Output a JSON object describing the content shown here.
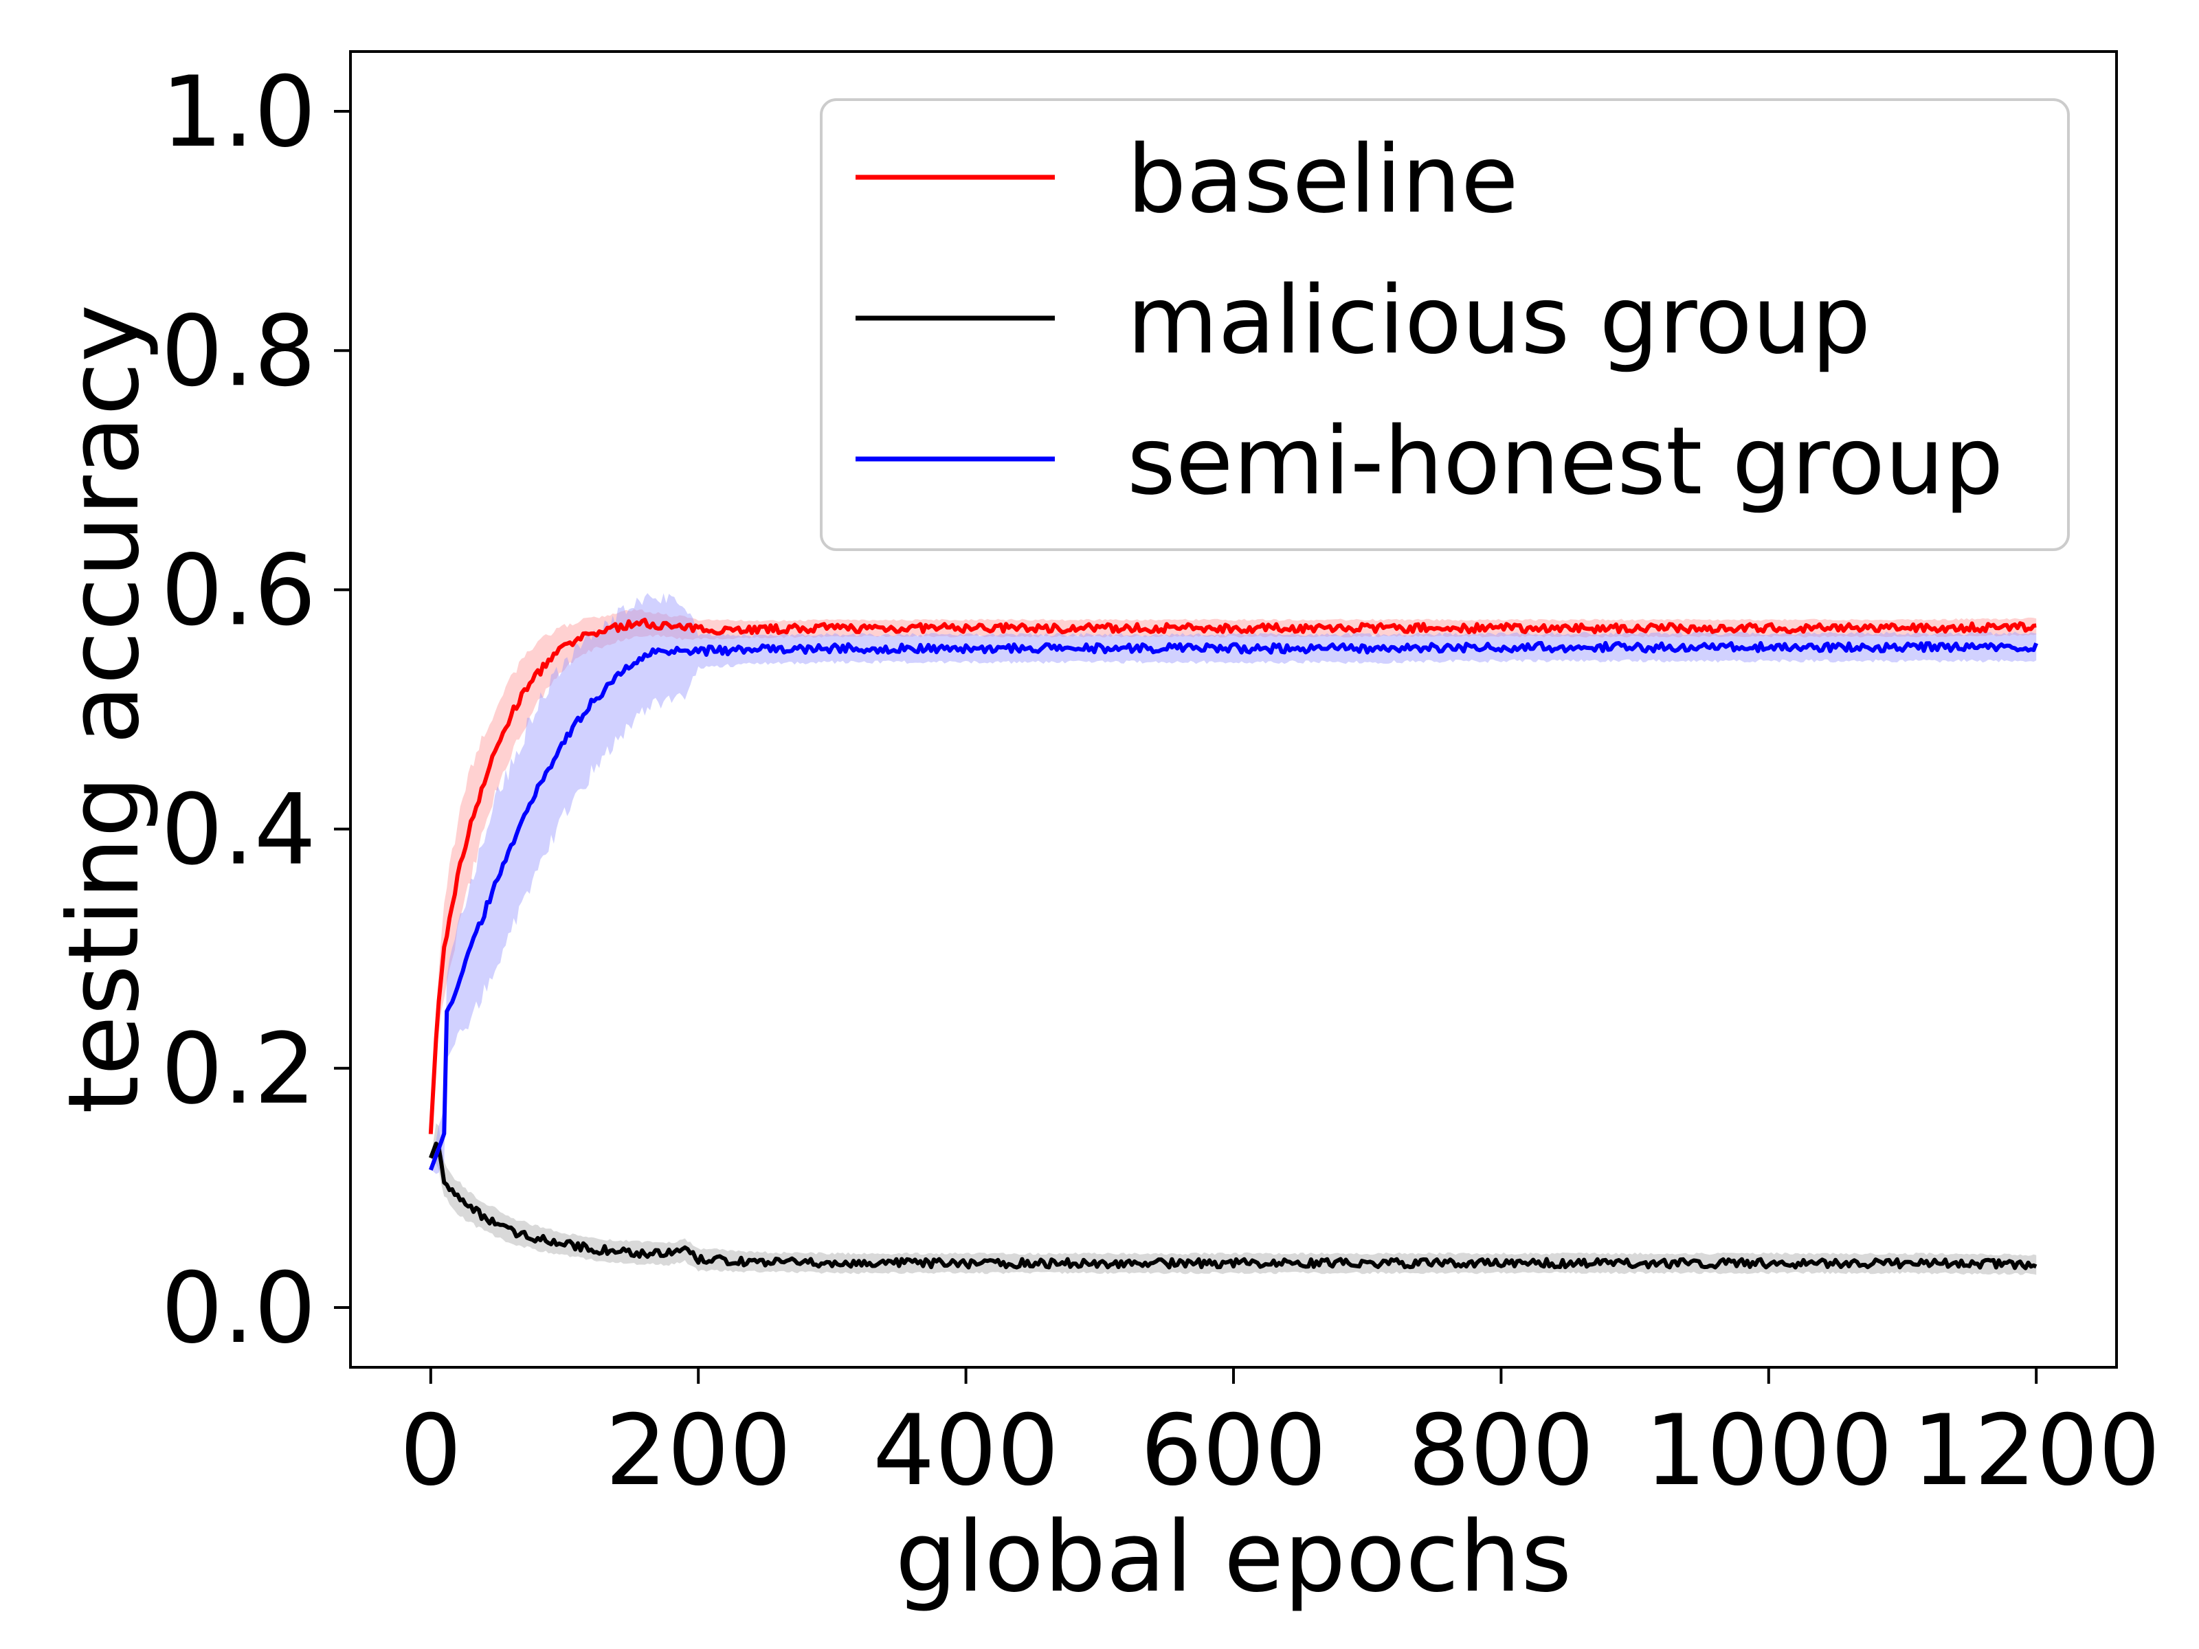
{
  "chart_data": {
    "type": "line",
    "title": "",
    "xlabel": "global epochs",
    "ylabel": "testing accuracy",
    "xlim": [
      -60,
      1260
    ],
    "ylim": [
      -0.05,
      1.05
    ],
    "xticks": [
      0,
      200,
      400,
      600,
      800,
      1000,
      1200
    ],
    "yticks": [
      0.0,
      0.2,
      0.4,
      0.6,
      0.8,
      1.0
    ],
    "ytick_labels": [
      "0.0",
      "0.2",
      "0.4",
      "0.6",
      "0.8",
      "1.0"
    ],
    "grid": false,
    "legend": "top-right",
    "series": [
      {
        "name": "baseline",
        "color": "#ff0000",
        "band_color": "#ff9a9a",
        "x": [
          0,
          5,
          10,
          20,
          30,
          40,
          50,
          60,
          70,
          80,
          90,
          100,
          110,
          120,
          130,
          140,
          150,
          160,
          170,
          180,
          190,
          200,
          250,
          300,
          400,
          500,
          600,
          700,
          800,
          900,
          1000,
          1100,
          1200
        ],
        "y": [
          0.145,
          0.245,
          0.3,
          0.36,
          0.405,
          0.44,
          0.47,
          0.495,
          0.515,
          0.53,
          0.543,
          0.552,
          0.558,
          0.563,
          0.566,
          0.569,
          0.571,
          0.572,
          0.571,
          0.569,
          0.568,
          0.567,
          0.567,
          0.568,
          0.568,
          0.568,
          0.568,
          0.568,
          0.568,
          0.568,
          0.568,
          0.568,
          0.569
        ],
        "spread": [
          0.0,
          0.02,
          0.035,
          0.04,
          0.04,
          0.035,
          0.03,
          0.028,
          0.025,
          0.022,
          0.018,
          0.015,
          0.013,
          0.012,
          0.011,
          0.01,
          0.01,
          0.009,
          0.008,
          0.008,
          0.008,
          0.007,
          0.006,
          0.006,
          0.006,
          0.006,
          0.006,
          0.006,
          0.006,
          0.006,
          0.006,
          0.006,
          0.006
        ]
      },
      {
        "name": "malicious group",
        "color": "#000000",
        "band_color": "#aaaaaa",
        "x": [
          0,
          5,
          8,
          10,
          15,
          20,
          30,
          40,
          50,
          60,
          80,
          100,
          120,
          150,
          180,
          190,
          200,
          250,
          300,
          400,
          500,
          600,
          700,
          800,
          900,
          1000,
          1100,
          1200
        ],
        "y": [
          0.125,
          0.14,
          0.12,
          0.108,
          0.098,
          0.092,
          0.083,
          0.076,
          0.07,
          0.064,
          0.058,
          0.053,
          0.049,
          0.046,
          0.045,
          0.048,
          0.04,
          0.038,
          0.037,
          0.037,
          0.037,
          0.037,
          0.037,
          0.037,
          0.037,
          0.037,
          0.037,
          0.036
        ],
        "spread": [
          0.0,
          0.02,
          0.015,
          0.012,
          0.012,
          0.012,
          0.011,
          0.01,
          0.01,
          0.009,
          0.009,
          0.008,
          0.008,
          0.008,
          0.008,
          0.008,
          0.008,
          0.007,
          0.007,
          0.007,
          0.007,
          0.007,
          0.007,
          0.007,
          0.007,
          0.007,
          0.007,
          0.007
        ]
      },
      {
        "name": "semi-honest group",
        "color": "#0000ff",
        "band_color": "#9a9aff",
        "x": [
          0,
          5,
          10,
          12,
          20,
          30,
          40,
          50,
          60,
          70,
          80,
          90,
          100,
          110,
          120,
          130,
          140,
          150,
          160,
          170,
          180,
          190,
          200,
          250,
          300,
          400,
          500,
          600,
          700,
          800,
          900,
          1000,
          1100,
          1200
        ],
        "y": [
          0.115,
          0.13,
          0.145,
          0.245,
          0.27,
          0.3,
          0.33,
          0.36,
          0.385,
          0.41,
          0.435,
          0.455,
          0.475,
          0.49,
          0.505,
          0.517,
          0.528,
          0.538,
          0.545,
          0.549,
          0.55,
          0.55,
          0.549,
          0.55,
          0.551,
          0.551,
          0.551,
          0.551,
          0.551,
          0.552,
          0.552,
          0.552,
          0.552,
          0.552
        ],
        "spread": [
          0.0,
          0.015,
          0.02,
          0.03,
          0.04,
          0.05,
          0.055,
          0.06,
          0.06,
          0.06,
          0.06,
          0.058,
          0.055,
          0.052,
          0.05,
          0.047,
          0.045,
          0.042,
          0.04,
          0.038,
          0.036,
          0.034,
          0.012,
          0.01,
          0.01,
          0.01,
          0.01,
          0.01,
          0.01,
          0.01,
          0.01,
          0.01,
          0.01,
          0.01
        ]
      }
    ]
  }
}
